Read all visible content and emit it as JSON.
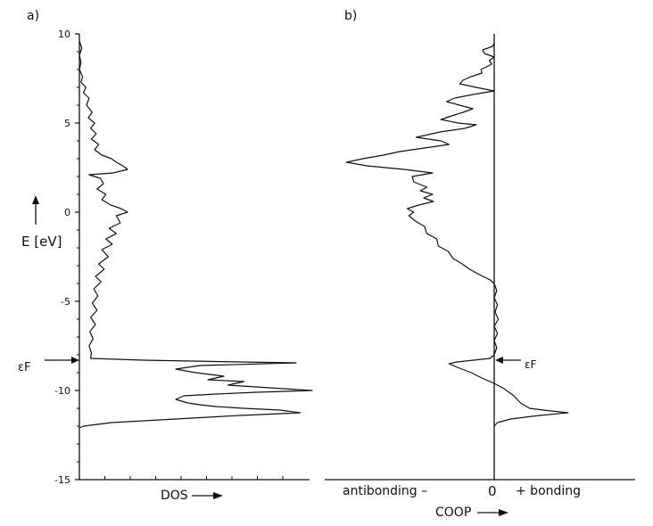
{
  "chart_data": [
    {
      "panel": "a)",
      "type": "line",
      "ylabel": "E [eV]",
      "xlabel": "DOS",
      "ylim": [
        -15,
        10
      ],
      "yticks": [
        10,
        5,
        0,
        -5,
        -10,
        -15
      ],
      "fermi_level": -8.3,
      "fermi_label": "εF",
      "series": [
        {
          "points": [
            [
              0,
              9.6
            ],
            [
              0.3,
              9.2
            ],
            [
              0,
              8.8
            ],
            [
              0.2,
              8.4
            ],
            [
              0,
              8.0
            ],
            [
              0.4,
              7.6
            ],
            [
              0.2,
              7.3
            ],
            [
              0.8,
              7.0
            ],
            [
              0.5,
              6.7
            ],
            [
              1.2,
              6.4
            ],
            [
              0.9,
              6.0
            ],
            [
              1.6,
              5.6
            ],
            [
              1.1,
              5.3
            ],
            [
              1.9,
              5.0
            ],
            [
              1.4,
              4.7
            ],
            [
              2.1,
              4.4
            ],
            [
              1.5,
              4.1
            ],
            [
              2.4,
              3.8
            ],
            [
              1.9,
              3.5
            ],
            [
              2.8,
              3.2
            ],
            [
              4.0,
              3.0
            ],
            [
              4.6,
              2.8
            ],
            [
              5.4,
              2.6
            ],
            [
              6.0,
              2.4
            ],
            [
              4.2,
              2.2
            ],
            [
              1.2,
              2.1
            ],
            [
              2.6,
              1.9
            ],
            [
              3.0,
              1.6
            ],
            [
              2.2,
              1.3
            ],
            [
              3.3,
              1.0
            ],
            [
              2.8,
              0.7
            ],
            [
              3.9,
              0.4
            ],
            [
              5.2,
              0.2
            ],
            [
              6.0,
              0.0
            ],
            [
              4.6,
              -0.2
            ],
            [
              5.1,
              -0.6
            ],
            [
              3.7,
              -0.9
            ],
            [
              4.6,
              -1.2
            ],
            [
              3.3,
              -1.5
            ],
            [
              4.1,
              -1.8
            ],
            [
              2.8,
              -2.1
            ],
            [
              3.6,
              -2.5
            ],
            [
              2.4,
              -2.9
            ],
            [
              3.1,
              -3.2
            ],
            [
              2.0,
              -3.6
            ],
            [
              2.7,
              -3.9
            ],
            [
              1.8,
              -4.3
            ],
            [
              2.3,
              -4.7
            ],
            [
              1.6,
              -5.1
            ],
            [
              2.2,
              -5.5
            ],
            [
              1.4,
              -5.9
            ],
            [
              2.0,
              -6.3
            ],
            [
              1.3,
              -6.7
            ],
            [
              1.7,
              -7.1
            ],
            [
              1.2,
              -7.5
            ],
            [
              1.5,
              -7.9
            ],
            [
              1.4,
              -8.2
            ],
            [
              8.0,
              -8.3
            ],
            [
              14.0,
              -8.35
            ],
            [
              20.0,
              -8.4
            ],
            [
              27.0,
              -8.45
            ],
            [
              15.0,
              -8.6
            ],
            [
              12.0,
              -8.8
            ],
            [
              14.5,
              -9.0
            ],
            [
              18.0,
              -9.2
            ],
            [
              16.0,
              -9.4
            ],
            [
              20.5,
              -9.5
            ],
            [
              18.5,
              -9.7
            ],
            [
              22.0,
              -9.8
            ],
            [
              29.0,
              -10.0
            ],
            [
              22.0,
              -10.1
            ],
            [
              17.0,
              -10.2
            ],
            [
              13.0,
              -10.3
            ],
            [
              12.0,
              -10.5
            ],
            [
              13.5,
              -10.7
            ],
            [
              15.0,
              -10.8
            ],
            [
              17.0,
              -10.9
            ],
            [
              20.5,
              -11.0
            ],
            [
              25.0,
              -11.1
            ],
            [
              27.5,
              -11.25
            ],
            [
              20.0,
              -11.4
            ],
            [
              12.0,
              -11.6
            ],
            [
              4.0,
              -11.8
            ],
            [
              0.5,
              -12.0
            ],
            [
              0,
              -12.1
            ]
          ]
        }
      ]
    },
    {
      "panel": "b)",
      "type": "line",
      "xlabel": "COOP",
      "x_zero_label": "0",
      "x_left_label": "antibonding –",
      "x_right_label": "+ bonding",
      "ylim": [
        -15,
        10
      ],
      "fermi_level": -8.3,
      "fermi_label": "εF",
      "series": [
        {
          "points": [
            [
              0,
              9.5
            ],
            [
              -0.2,
              9.3
            ],
            [
              -1.4,
              9.1
            ],
            [
              -1.2,
              8.9
            ],
            [
              0,
              8.7
            ],
            [
              -0.6,
              8.5
            ],
            [
              -0.3,
              8.3
            ],
            [
              -1.6,
              8.0
            ],
            [
              -1.5,
              7.8
            ],
            [
              -2.8,
              7.6
            ],
            [
              -3.8,
              7.4
            ],
            [
              -4.2,
              7.2
            ],
            [
              -2.2,
              7.0
            ],
            [
              0,
              6.8
            ],
            [
              -2.6,
              6.6
            ],
            [
              -4.8,
              6.4
            ],
            [
              -5.8,
              6.2
            ],
            [
              -4.2,
              6.0
            ],
            [
              -2.6,
              5.8
            ],
            [
              -3.8,
              5.6
            ],
            [
              -5.2,
              5.4
            ],
            [
              -6.5,
              5.2
            ],
            [
              -4.4,
              5.0
            ],
            [
              -2.2,
              4.9
            ],
            [
              -3.6,
              4.7
            ],
            [
              -6.6,
              4.5
            ],
            [
              -8.5,
              4.3
            ],
            [
              -9.5,
              4.2
            ],
            [
              -6.5,
              4.0
            ],
            [
              -5.5,
              3.8
            ],
            [
              -8.5,
              3.6
            ],
            [
              -11.5,
              3.4
            ],
            [
              -13.5,
              3.2
            ],
            [
              -16.0,
              3.0
            ],
            [
              -18.0,
              2.8
            ],
            [
              -15.5,
              2.6
            ],
            [
              -11.0,
              2.4
            ],
            [
              -7.5,
              2.2
            ],
            [
              -10.0,
              2.0
            ],
            [
              -9.8,
              1.7
            ],
            [
              -8.2,
              1.4
            ],
            [
              -9.0,
              1.2
            ],
            [
              -7.5,
              1.0
            ],
            [
              -8.6,
              0.8
            ],
            [
              -7.4,
              0.6
            ],
            [
              -9.2,
              0.4
            ],
            [
              -10.6,
              0.2
            ],
            [
              -9.8,
              0.0
            ],
            [
              -10.4,
              -0.2
            ],
            [
              -9.6,
              -0.5
            ],
            [
              -8.5,
              -0.8
            ],
            [
              -8.2,
              -1.2
            ],
            [
              -7.0,
              -1.5
            ],
            [
              -6.8,
              -1.9
            ],
            [
              -5.6,
              -2.2
            ],
            [
              -5.0,
              -2.6
            ],
            [
              -3.9,
              -2.9
            ],
            [
              -3.0,
              -3.2
            ],
            [
              -1.8,
              -3.5
            ],
            [
              -0.5,
              -3.8
            ],
            [
              0,
              -4.0
            ],
            [
              0.3,
              -4.4
            ],
            [
              0.0,
              -4.8
            ],
            [
              0.4,
              -5.2
            ],
            [
              0.1,
              -5.6
            ],
            [
              0.5,
              -6.0
            ],
            [
              0.0,
              -6.4
            ],
            [
              0.4,
              -6.8
            ],
            [
              0.0,
              -7.2
            ],
            [
              0.3,
              -7.6
            ],
            [
              0.0,
              -8.0
            ],
            [
              -0.5,
              -8.2
            ],
            [
              -2.5,
              -8.3
            ],
            [
              -4.5,
              -8.4
            ],
            [
              -5.5,
              -8.5
            ],
            [
              -4.5,
              -8.7
            ],
            [
              -2.8,
              -9.0
            ],
            [
              -1.5,
              -9.3
            ],
            [
              0.0,
              -9.6
            ],
            [
              1.2,
              -9.9
            ],
            [
              2.4,
              -10.3
            ],
            [
              3.2,
              -10.7
            ],
            [
              4.3,
              -11.0
            ],
            [
              6.0,
              -11.1
            ],
            [
              9.0,
              -11.25
            ],
            [
              5.5,
              -11.4
            ],
            [
              2.0,
              -11.6
            ],
            [
              0.4,
              -11.8
            ],
            [
              0,
              -12.0
            ]
          ]
        }
      ]
    }
  ]
}
